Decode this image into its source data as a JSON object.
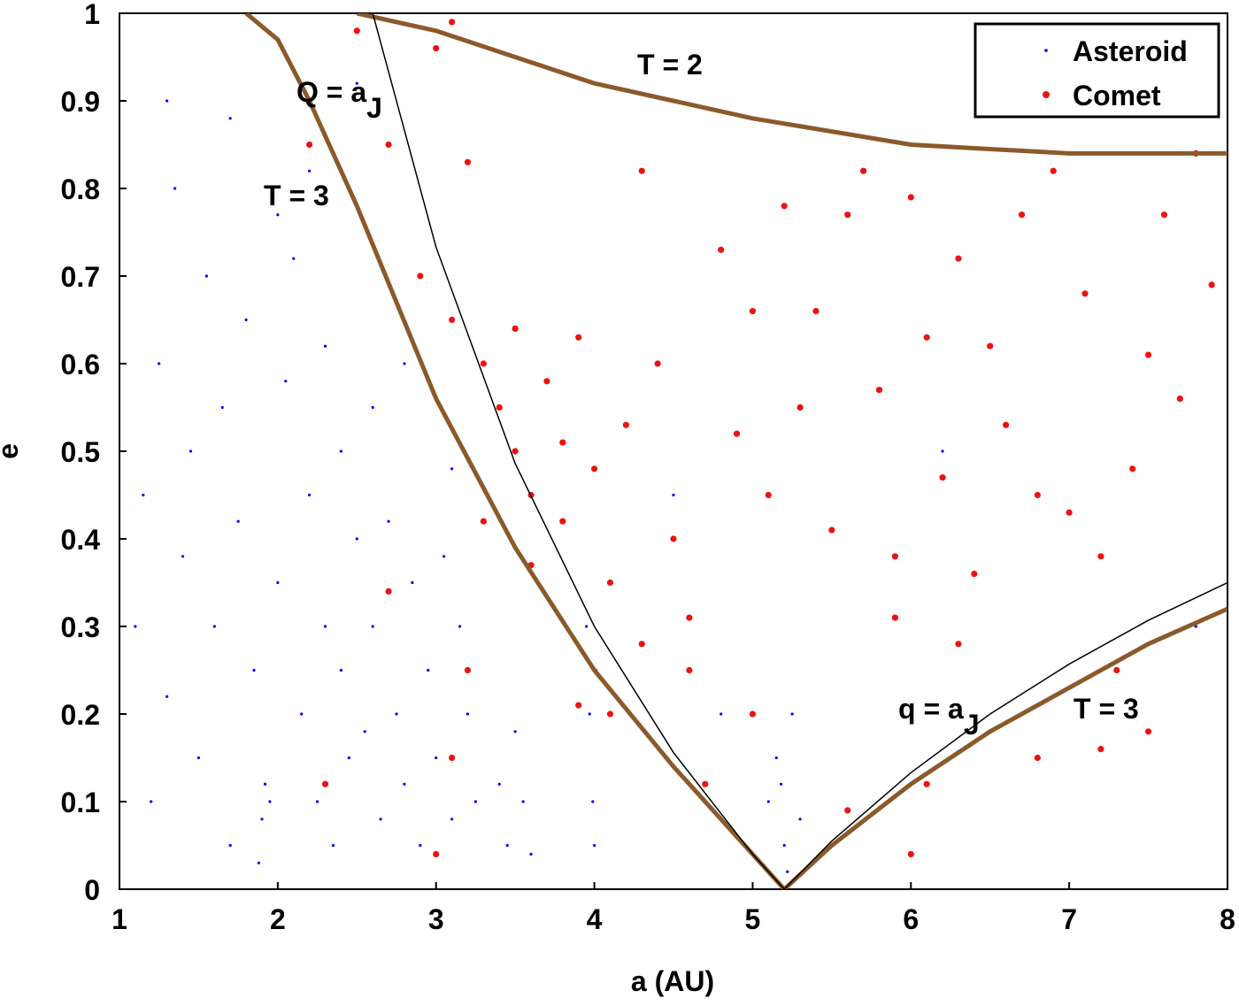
{
  "chart_data": {
    "type": "scatter",
    "xlabel": "a (AU)",
    "ylabel": "e",
    "xlim": [
      1,
      8
    ],
    "ylim": [
      0,
      1
    ],
    "xticks": [
      1,
      2,
      3,
      4,
      5,
      6,
      7,
      8
    ],
    "yticks": [
      0,
      0.1,
      0.2,
      0.3,
      0.4,
      0.5,
      0.6,
      0.7,
      0.8,
      0.9,
      1
    ],
    "grid": false,
    "legend": "upper right",
    "series": [
      {
        "name": "Asteroid",
        "color": "#0000ff",
        "x": [
          1.1,
          1.15,
          1.2,
          1.25,
          1.3,
          1.35,
          1.4,
          1.45,
          1.5,
          1.55,
          1.6,
          1.65,
          1.7,
          1.75,
          1.8,
          1.85,
          1.9,
          1.92,
          1.88,
          1.95,
          2.0,
          2.05,
          2.1,
          2.15,
          2.2,
          2.25,
          2.3,
          2.35,
          2.4,
          2.45,
          2.3,
          2.2,
          2.4,
          2.5,
          2.55,
          2.6,
          2.65,
          2.7,
          2.75,
          2.8,
          2.85,
          2.9,
          2.95,
          3.0,
          3.05,
          3.1,
          3.15,
          3.2,
          3.25,
          3.1,
          2.6,
          2.8,
          3.4,
          3.45,
          3.5,
          3.55,
          3.6,
          3.95,
          3.97,
          3.99,
          4.01,
          4.0,
          5.1,
          5.15,
          5.2,
          5.25,
          5.3,
          5.18,
          5.22,
          1.3,
          1.7,
          2.0,
          2.5,
          4.5,
          6.2,
          7.8,
          4.8
        ],
        "values": [
          0.3,
          0.45,
          0.1,
          0.6,
          0.22,
          0.8,
          0.38,
          0.5,
          0.15,
          0.7,
          0.3,
          0.55,
          0.05,
          0.42,
          0.65,
          0.25,
          0.08,
          0.12,
          0.03,
          0.1,
          0.35,
          0.58,
          0.72,
          0.2,
          0.45,
          0.1,
          0.3,
          0.05,
          0.25,
          0.15,
          0.62,
          0.82,
          0.5,
          0.4,
          0.18,
          0.3,
          0.08,
          0.42,
          0.2,
          0.12,
          0.35,
          0.05,
          0.25,
          0.15,
          0.38,
          0.08,
          0.3,
          0.2,
          0.1,
          0.48,
          0.55,
          0.6,
          0.12,
          0.05,
          0.18,
          0.1,
          0.04,
          0.3,
          0.2,
          0.1,
          0.25,
          0.05,
          0.1,
          0.15,
          0.05,
          0.2,
          0.08,
          0.12,
          0.02,
          0.9,
          0.88,
          0.77,
          0.92,
          0.45,
          0.5,
          0.3,
          0.2
        ]
      },
      {
        "name": "Comet",
        "color": "#ee1111",
        "x": [
          2.5,
          3.0,
          3.1,
          2.7,
          3.2,
          2.9,
          3.1,
          3.3,
          3.4,
          3.5,
          3.6,
          3.7,
          3.8,
          3.9,
          4.0,
          4.1,
          4.2,
          4.3,
          4.4,
          4.5,
          4.6,
          4.7,
          4.8,
          4.9,
          5.0,
          5.1,
          5.2,
          5.3,
          5.4,
          5.5,
          5.6,
          5.7,
          5.8,
          5.9,
          6.0,
          6.1,
          6.2,
          6.3,
          6.4,
          6.5,
          6.6,
          6.7,
          6.8,
          6.9,
          7.0,
          7.1,
          7.2,
          7.3,
          7.4,
          7.5,
          7.6,
          7.7,
          7.8,
          7.9,
          3.5,
          3.6,
          3.8,
          3.3,
          4.1,
          4.3,
          4.6,
          5.0,
          5.6,
          5.9,
          6.0,
          6.1,
          6.3,
          6.8,
          7.2,
          7.5,
          3.2,
          3.1,
          2.3,
          3.0,
          2.7,
          3.9,
          2.2
        ],
        "values": [
          0.98,
          0.96,
          0.99,
          0.85,
          0.83,
          0.7,
          0.65,
          0.6,
          0.55,
          0.5,
          0.45,
          0.58,
          0.42,
          0.63,
          0.48,
          0.35,
          0.53,
          0.28,
          0.6,
          0.4,
          0.31,
          0.12,
          0.73,
          0.52,
          0.66,
          0.45,
          0.78,
          0.55,
          0.66,
          0.41,
          0.77,
          0.82,
          0.57,
          0.38,
          0.79,
          0.63,
          0.47,
          0.72,
          0.36,
          0.62,
          0.53,
          0.77,
          0.45,
          0.82,
          0.43,
          0.68,
          0.38,
          0.25,
          0.48,
          0.61,
          0.77,
          0.56,
          0.84,
          0.69,
          0.64,
          0.37,
          0.51,
          0.42,
          0.2,
          0.82,
          0.25,
          0.2,
          0.09,
          0.31,
          0.04,
          0.12,
          0.28,
          0.15,
          0.16,
          0.18,
          0.25,
          0.15,
          0.12,
          0.04,
          0.34,
          0.21,
          0.85
        ]
      }
    ],
    "curves": [
      {
        "color": "#8b5a2b",
        "x": [
          1.8,
          2.0,
          2.2,
          2.5,
          3.0,
          3.5,
          4.0,
          4.5,
          5.0,
          5.2,
          5.5,
          6.0,
          6.5,
          7.0,
          7.5,
          8.0
        ],
        "values": [
          1,
          0.97,
          0.9,
          0.78,
          0.56,
          0.39,
          0.25,
          0.14,
          0.04,
          0,
          0.05,
          0.12,
          0.18,
          0.23,
          0.28,
          0.32
        ]
      },
      {
        "color": "#8b5a2b",
        "x": [
          2.5,
          3.0,
          3.5,
          4.0,
          4.5,
          5.0,
          5.5,
          6.0,
          6.5,
          7.0,
          7.5,
          8.0
        ],
        "values": [
          1,
          0.98,
          0.95,
          0.92,
          0.9,
          0.88,
          0.865,
          0.85,
          0.845,
          0.84,
          0.84,
          0.84
        ]
      },
      {
        "color": "#000000",
        "x": [
          2.6,
          3.0,
          3.5,
          4.0,
          4.5,
          5.0,
          5.2
        ],
        "values": [
          1,
          0.733,
          0.486,
          0.3,
          0.156,
          0.04,
          0
        ]
      },
      {
        "color": "#000000",
        "x": [
          5.2,
          5.5,
          6.0,
          6.5,
          7.0,
          7.5,
          8.0
        ],
        "values": [
          0,
          0.055,
          0.133,
          0.2,
          0.257,
          0.307,
          0.35
        ]
      }
    ],
    "annotations": [
      {
        "text": "T = 2"
      },
      {
        "text": "Q = a",
        "sub": "J"
      },
      {
        "text": "T = 3"
      },
      {
        "text": "q = a",
        "sub": "J"
      },
      {
        "text": "T = 3"
      }
    ]
  }
}
